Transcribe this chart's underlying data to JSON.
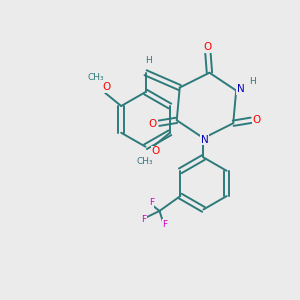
{
  "background_color": "#ebebeb",
  "bond_color": "#2d7a7a",
  "atom_colors": {
    "O": "#ff0000",
    "N": "#0000bb",
    "F": "#cc00cc",
    "H": "#2d7a7a",
    "C": "#2d7a7a"
  },
  "figsize": [
    3.0,
    3.0
  ],
  "dpi": 100
}
